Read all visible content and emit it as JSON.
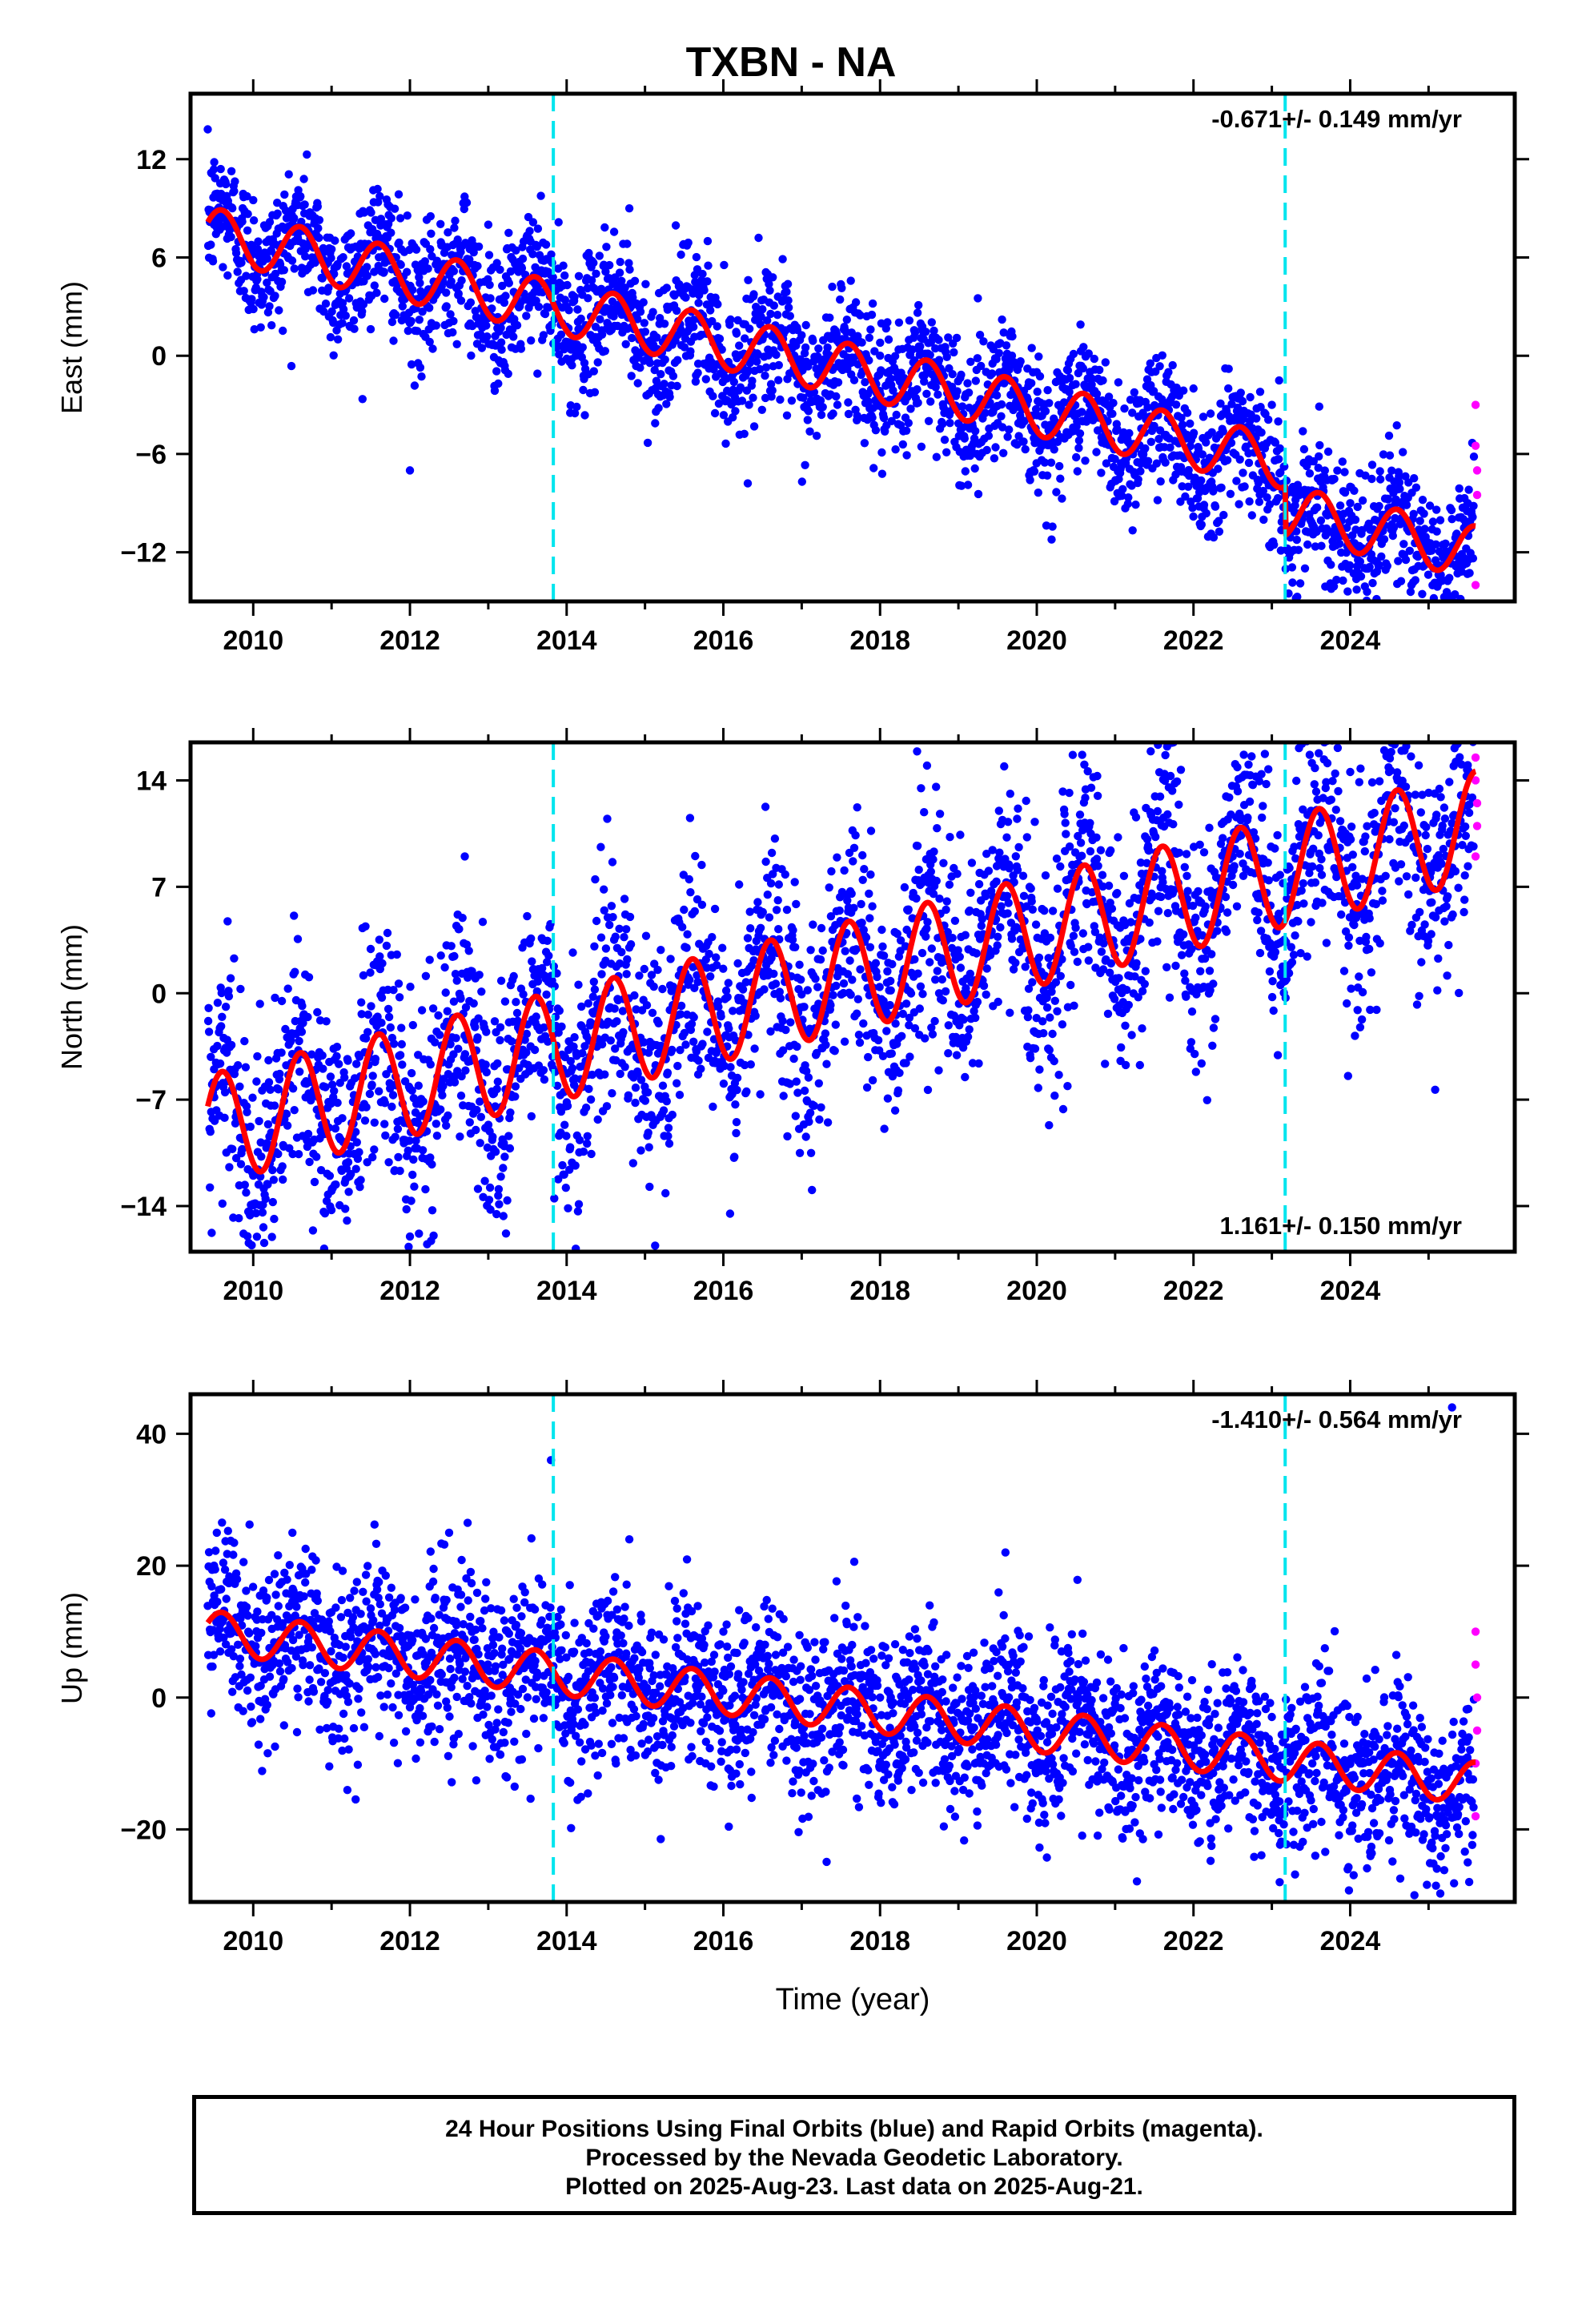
{
  "title": "TXBN - NA",
  "colors": {
    "final_orbits": "#0000ff",
    "rapid_orbits": "#ff00ff",
    "model_fit": "#ff0000",
    "event_lines": "#00e5ee",
    "frame": "#000000"
  },
  "xlabel": "Time (year)",
  "footer": {
    "line1": "24 Hour Positions Using Final Orbits (blue) and Rapid Orbits (magenta).",
    "line2": "Processed by the Nevada Geodetic Laboratory.",
    "line3": "Plotted on 2025-Aug-23. Last data on 2025-Aug-21."
  },
  "chart_data": [
    {
      "type": "scatter",
      "component": "East",
      "ylabel": "East (mm)",
      "rate_label": "-0.671+/- 0.149 mm/yr",
      "rate_position": "top-right",
      "xlim": [
        2009.2,
        2026.1
      ],
      "ylim": [
        -15,
        16
      ],
      "x_ticks": [
        2010,
        2012,
        2014,
        2016,
        2018,
        2020,
        2022,
        2024
      ],
      "y_ticks": [
        12,
        6,
        0,
        -6,
        -12
      ],
      "grid": false,
      "event_lines_x": [
        2013.83,
        2023.17
      ],
      "trend": {
        "start": [
          2009.4,
          7.5
        ],
        "end": [
          2025.6,
          -9.0
        ],
        "offsets": [
          [
            2023.17,
            -3.0
          ]
        ]
      },
      "seasonal_amplitude": 1.6,
      "series": [
        {
          "name": "Final Orbits",
          "style": "scatter",
          "color": "#0000ff",
          "samples": [
            [
              2009.5,
              8.0
            ],
            [
              2010.0,
              9.5
            ],
            [
              2011.0,
              6.5
            ],
            [
              2012.0,
              2.0
            ],
            [
              2012.0,
              -7.0
            ],
            [
              2013.0,
              8.0
            ],
            [
              2014.0,
              3.0
            ],
            [
              2014.8,
              9.0
            ],
            [
              2015.8,
              7.0
            ],
            [
              2016.5,
              1.0
            ],
            [
              2018.0,
              0.0
            ],
            [
              2020.0,
              -1.0
            ],
            [
              2022.0,
              -2.0
            ],
            [
              2023.0,
              -3.0
            ],
            [
              2023.3,
              -8.0
            ],
            [
              2024.0,
              -8.0
            ],
            [
              2025.5,
              -9.0
            ]
          ]
        },
        {
          "name": "Rapid Orbits",
          "style": "scatter",
          "color": "#ff00ff",
          "samples": [
            [
              2025.6,
              -3.0
            ],
            [
              2025.6,
              -5.5
            ],
            [
              2025.62,
              -7.0
            ],
            [
              2025.62,
              -8.5
            ],
            [
              2025.6,
              -14.0
            ]
          ]
        },
        {
          "name": "Model fit",
          "style": "line",
          "color": "#ff0000"
        }
      ]
    },
    {
      "type": "scatter",
      "component": "North",
      "ylabel": "North (mm)",
      "rate_label": "1.161+/- 0.150 mm/yr",
      "rate_position": "bottom-right",
      "xlim": [
        2009.2,
        2026.1
      ],
      "ylim": [
        -17,
        16.5
      ],
      "x_ticks": [
        2010,
        2012,
        2014,
        2016,
        2018,
        2020,
        2022,
        2024
      ],
      "y_ticks": [
        14,
        7,
        0,
        -7,
        -14
      ],
      "grid": false,
      "event_lines_x": [
        2013.83,
        2023.17
      ],
      "trend": {
        "start": [
          2009.4,
          -9.0
        ],
        "end": [
          2025.6,
          11.0
        ],
        "offsets": []
      },
      "seasonal_amplitude": 3.6,
      "series": [
        {
          "name": "Final Orbits",
          "style": "scatter",
          "color": "#0000ff",
          "samples": [
            [
              2009.5,
              -5.0
            ],
            [
              2010.0,
              -12.0
            ],
            [
              2011.0,
              -13.0
            ],
            [
              2012.0,
              -16.0
            ],
            [
              2012.7,
              9.0
            ],
            [
              2013.8,
              -2.0
            ],
            [
              2014.5,
              0.0
            ],
            [
              2016.5,
              3.0
            ],
            [
              2018.5,
              5.0
            ],
            [
              2020.5,
              7.0
            ],
            [
              2022.5,
              9.0
            ],
            [
              2023.5,
              12.0
            ],
            [
              2024.5,
              13.0
            ],
            [
              2025.5,
              15.0
            ]
          ]
        },
        {
          "name": "Rapid Orbits",
          "style": "scatter",
          "color": "#ff00ff",
          "samples": [
            [
              2025.6,
              15.5
            ],
            [
              2025.6,
              14.0
            ],
            [
              2025.62,
              12.5
            ],
            [
              2025.62,
              11.0
            ],
            [
              2025.6,
              9.0
            ]
          ]
        },
        {
          "name": "Model fit",
          "style": "line",
          "color": "#ff0000"
        }
      ]
    },
    {
      "type": "scatter",
      "component": "Up",
      "ylabel": "Up (mm)",
      "rate_label": "-1.410+/- 0.564 mm/yr",
      "rate_position": "top-right",
      "xlim": [
        2009.2,
        2026.1
      ],
      "ylim": [
        -31,
        46
      ],
      "x_ticks": [
        2010,
        2012,
        2014,
        2016,
        2018,
        2020,
        2022,
        2024
      ],
      "y_ticks": [
        40,
        20,
        0,
        -20
      ],
      "grid": false,
      "event_lines_x": [
        2013.83,
        2023.17
      ],
      "trend": {
        "start": [
          2009.4,
          10.0
        ],
        "end": [
          2025.6,
          -13.0
        ],
        "offsets": []
      },
      "seasonal_amplitude": 3.2,
      "series": [
        {
          "name": "Final Orbits",
          "style": "scatter",
          "color": "#0000ff",
          "samples": [
            [
              2009.5,
              20.0
            ],
            [
              2010.5,
              25.0
            ],
            [
              2012.5,
              25.0
            ],
            [
              2013.8,
              36.0
            ],
            [
              2014.8,
              24.0
            ],
            [
              2016.0,
              10.0
            ],
            [
              2018.0,
              0.0
            ],
            [
              2019.6,
              22.0
            ],
            [
              2020.0,
              -10.0
            ],
            [
              2022.0,
              -5.0
            ],
            [
              2023.1,
              -28.0
            ],
            [
              2024.0,
              -10.0
            ],
            [
              2025.3,
              44.0
            ],
            [
              2025.5,
              -25.0
            ]
          ]
        },
        {
          "name": "Rapid Orbits",
          "style": "scatter",
          "color": "#ff00ff",
          "samples": [
            [
              2025.6,
              10.0
            ],
            [
              2025.6,
              5.0
            ],
            [
              2025.62,
              0.0
            ],
            [
              2025.62,
              -5.0
            ],
            [
              2025.6,
              -10.0
            ],
            [
              2025.6,
              -18.0
            ]
          ]
        },
        {
          "name": "Model fit",
          "style": "line",
          "color": "#ff0000"
        }
      ]
    }
  ]
}
